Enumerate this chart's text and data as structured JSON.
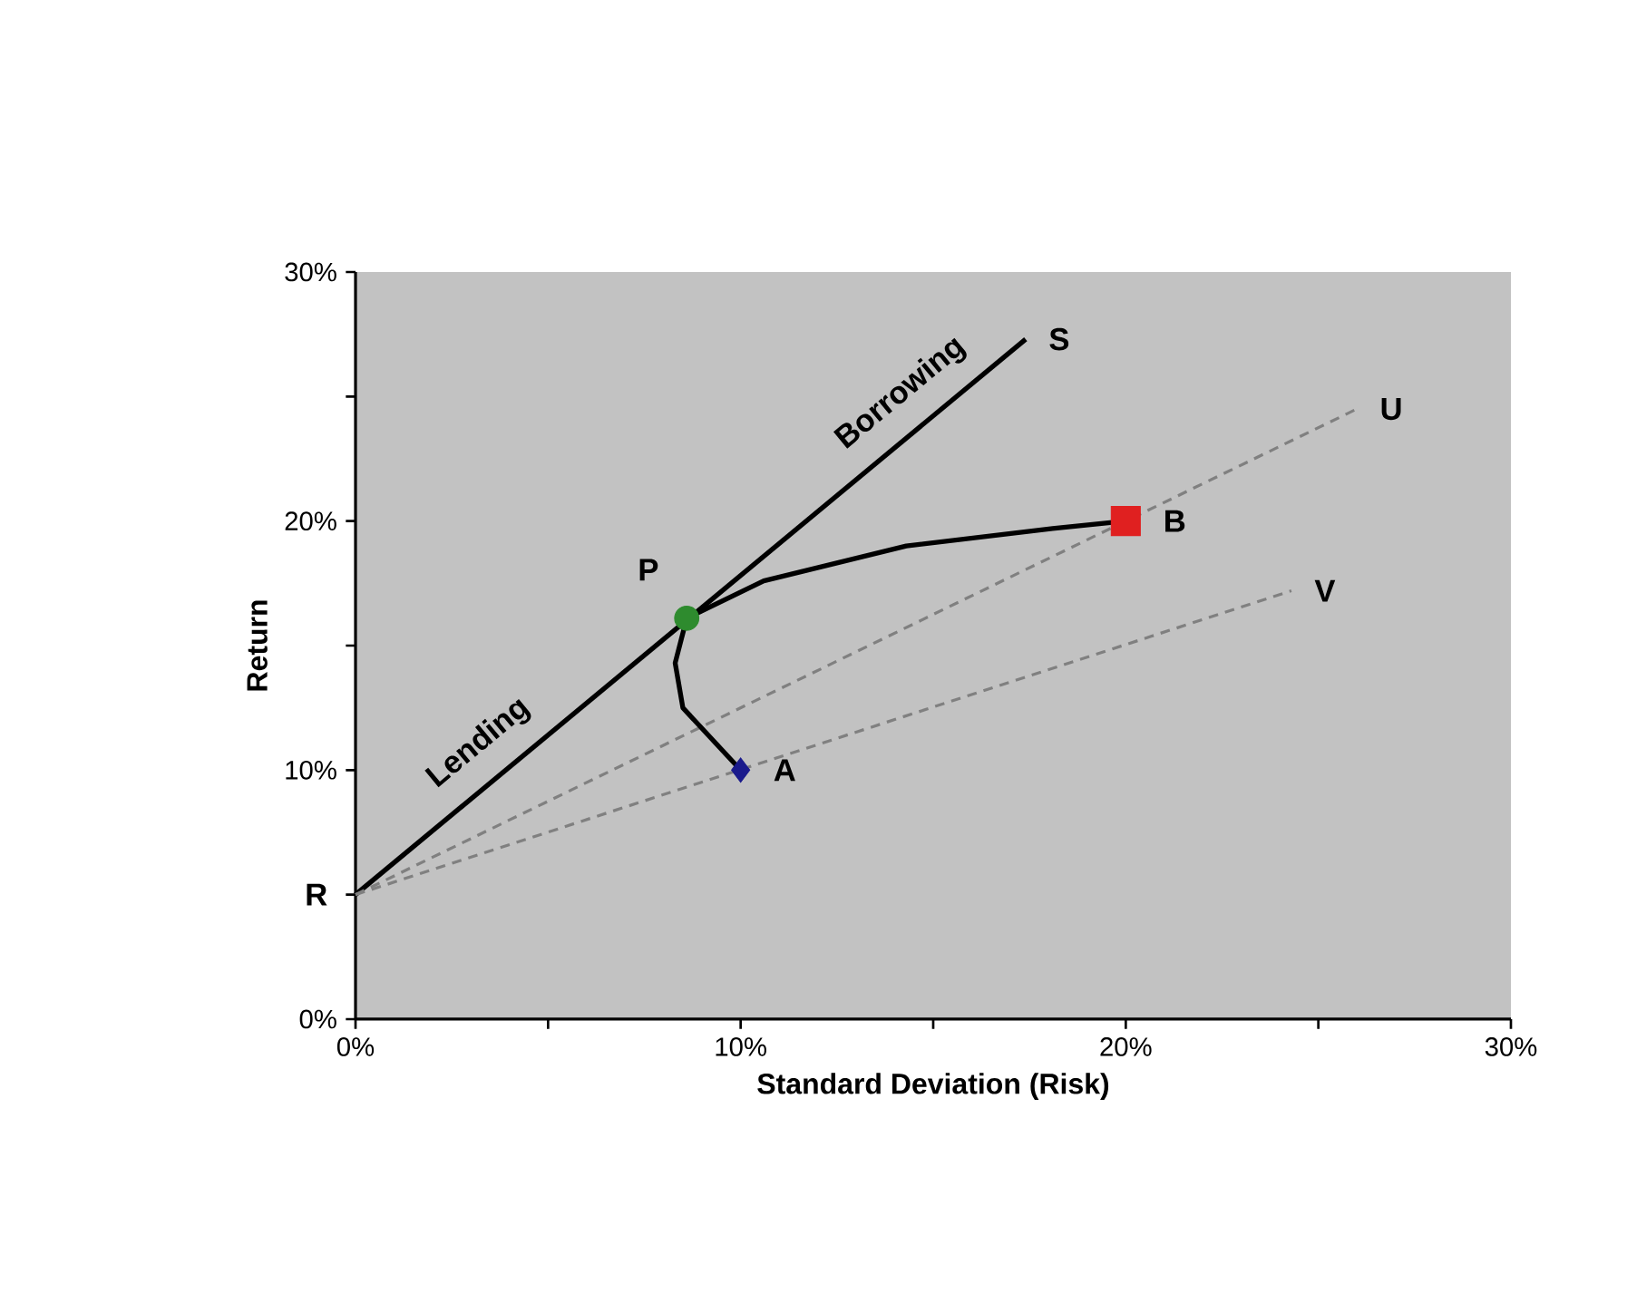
{
  "chart_data": {
    "type": "line",
    "xlabel": "Standard Deviation (Risk)",
    "ylabel": "Return",
    "xlim": [
      0,
      30
    ],
    "ylim": [
      0,
      30
    ],
    "xticks": [
      {
        "value": 0,
        "label": "0%"
      },
      {
        "value": 5,
        "label": null
      },
      {
        "value": 10,
        "label": "10%"
      },
      {
        "value": 15,
        "label": null
      },
      {
        "value": 20,
        "label": "20%"
      },
      {
        "value": 25,
        "label": null
      },
      {
        "value": 30,
        "label": "30%"
      }
    ],
    "yticks": [
      {
        "value": 0,
        "label": "0%"
      },
      {
        "value": 5,
        "label": null
      },
      {
        "value": 10,
        "label": "10%"
      },
      {
        "value": 15,
        "label": null
      },
      {
        "value": 20,
        "label": "20%"
      },
      {
        "value": 25,
        "label": null
      },
      {
        "value": 30,
        "label": "30%"
      }
    ],
    "grid": false,
    "series": [
      {
        "color": "#000000",
        "line_style": "solid",
        "marker": "none",
        "x": [
          0,
          17.4
        ],
        "values": [
          5,
          27.3
        ]
      },
      {
        "color": "#808080",
        "line_style": "dashed",
        "marker": "none",
        "x": [
          0,
          26
        ],
        "values": [
          5,
          24.5
        ]
      },
      {
        "color": "#808080",
        "line_style": "dashed",
        "marker": "none",
        "x": [
          0,
          24.3
        ],
        "values": [
          5,
          17.2
        ]
      },
      {
        "color": "#000000",
        "line_style": "solid",
        "marker": "none",
        "x": [
          10,
          8.5,
          8.3,
          8.6,
          10.6,
          14.3,
          18.1,
          20
        ],
        "values": [
          10,
          12.5,
          14.3,
          16.1,
          17.6,
          19.0,
          19.7,
          20
        ]
      },
      {
        "type": "scatter",
        "color": "#1a1a8c",
        "marker": "diamond",
        "x": [
          10
        ],
        "values": [
          10
        ]
      },
      {
        "type": "scatter",
        "color": "#2e8b2e",
        "marker": "circle",
        "x": [
          8.6
        ],
        "values": [
          16.1
        ]
      },
      {
        "type": "scatter",
        "color": "#e02020",
        "marker": "square",
        "x": [
          20
        ],
        "values": [
          20
        ]
      }
    ],
    "annotations": [
      {
        "text": "R",
        "x": 0,
        "y": 5
      },
      {
        "text": "S",
        "x": 17.4,
        "y": 27.3
      },
      {
        "text": "U",
        "x": 26,
        "y": 24.5
      },
      {
        "text": "V",
        "x": 24.3,
        "y": 17.2
      },
      {
        "text": "A",
        "x": 10,
        "y": 10
      },
      {
        "text": "B",
        "x": 20,
        "y": 20
      },
      {
        "text": "P",
        "x": 8.6,
        "y": 16.1
      },
      "Lending",
      "Borrowing"
    ]
  }
}
